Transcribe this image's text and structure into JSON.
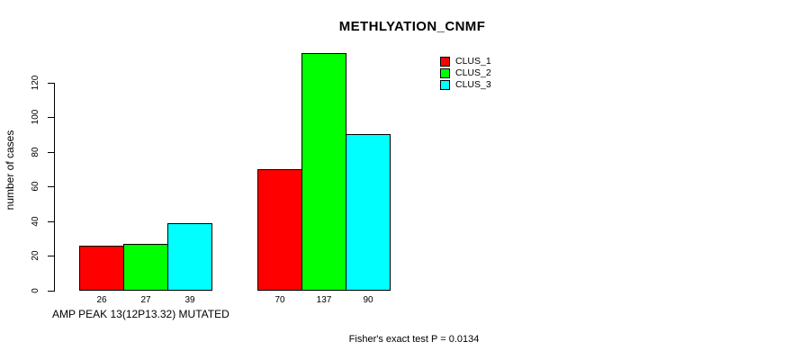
{
  "title": "METHLYATION_CNMF",
  "chart_data": {
    "type": "bar",
    "title": "METHLYATION_CNMF",
    "xlabel": "AMP PEAK 13(12P13.32) MUTATED",
    "ylabel": "number of cases",
    "annotation": "Fisher's exact test P = 0.0134",
    "yticks": [
      0,
      20,
      40,
      60,
      80,
      100,
      120
    ],
    "ylim": [
      0,
      137
    ],
    "grid": false,
    "value_labels_under_bars": true,
    "series": [
      {
        "name": "CLUS_1",
        "color": "#ff0000",
        "values": [
          26,
          70
        ]
      },
      {
        "name": "CLUS_2",
        "color": "#00ff00",
        "values": [
          27,
          137
        ]
      },
      {
        "name": "CLUS_3",
        "color": "#00ffff",
        "values": [
          39,
          90
        ]
      }
    ],
    "legend": {
      "position": "top-right",
      "entries": [
        "CLUS_1",
        "CLUS_2",
        "CLUS_3"
      ]
    }
  },
  "colors": {
    "background": "#ffffff",
    "text": "#000000",
    "axis": "#000000"
  }
}
